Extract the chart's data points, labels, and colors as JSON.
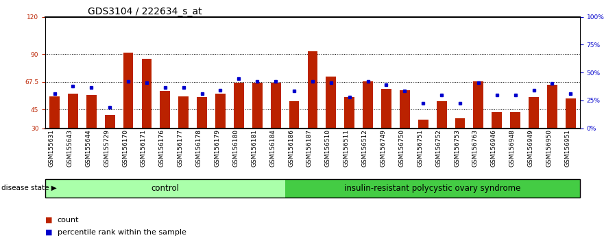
{
  "title": "GDS3104 / 222634_s_at",
  "samples": [
    "GSM155631",
    "GSM155643",
    "GSM155644",
    "GSM155729",
    "GSM156170",
    "GSM156171",
    "GSM156176",
    "GSM156177",
    "GSM156178",
    "GSM156179",
    "GSM156180",
    "GSM156181",
    "GSM156184",
    "GSM156186",
    "GSM156187",
    "GSM156510",
    "GSM156511",
    "GSM156512",
    "GSM156749",
    "GSM156750",
    "GSM156751",
    "GSM156752",
    "GSM156753",
    "GSM156763",
    "GSM156946",
    "GSM156948",
    "GSM156949",
    "GSM156950",
    "GSM156951"
  ],
  "red_values": [
    56,
    58,
    57,
    41,
    91,
    86,
    60,
    56,
    55,
    58,
    67,
    67,
    67,
    52,
    92,
    72,
    55,
    68,
    62,
    61,
    37,
    52,
    38,
    68,
    43,
    43,
    55,
    65,
    54
  ],
  "blue_values": [
    58,
    64,
    63,
    47,
    68,
    67,
    63,
    63,
    58,
    61,
    70,
    68,
    68,
    60,
    68,
    67,
    55,
    68,
    65,
    60,
    50,
    57,
    50,
    67,
    57,
    57,
    61,
    66,
    58
  ],
  "n_control": 13,
  "n_disease": 16,
  "control_label": "control",
  "disease_label": "insulin-resistant polycystic ovary syndrome",
  "disease_state_label": "disease state",
  "ylim_left": [
    30,
    120
  ],
  "yticks_left": [
    30,
    45,
    67.5,
    90,
    120
  ],
  "ytick_labels_left": [
    "30",
    "45",
    "67.5",
    "90",
    "120"
  ],
  "yticks_right": [
    0,
    30,
    60,
    90,
    120
  ],
  "ytick_labels_right": [
    "0",
    "25",
    "50",
    "75",
    "100"
  ],
  "hline_positions": [
    45,
    67.5,
    90
  ],
  "bar_color": "#bb2200",
  "dot_color": "#0000cc",
  "control_bg": "#aaffaa",
  "disease_bg": "#44cc44",
  "tick_bg": "#d8d8d8",
  "plot_bg": "#ffffff",
  "title_fontsize": 10,
  "tick_fontsize": 6.5,
  "legend_fontsize": 8
}
